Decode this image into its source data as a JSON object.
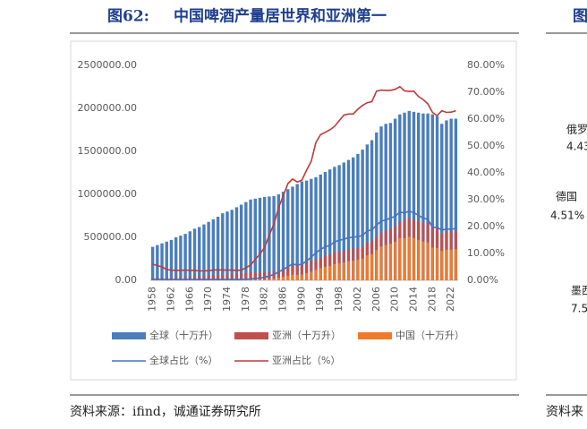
{
  "header": {
    "figure_no": "图62:",
    "title": "中国啤酒产量居世界和亚洲第一"
  },
  "chart_data": {
    "type": "bar",
    "categories": [
      "1958",
      null,
      null,
      null,
      "1962",
      null,
      null,
      null,
      "1966",
      null,
      null,
      null,
      "1970",
      null,
      null,
      null,
      "1974",
      null,
      null,
      null,
      "1978",
      null,
      null,
      null,
      "1982",
      null,
      null,
      null,
      "1986",
      null,
      null,
      null,
      "1990",
      null,
      null,
      null,
      "1994",
      null,
      null,
      null,
      "1998",
      null,
      null,
      null,
      "2002",
      null,
      null,
      null,
      "2006",
      null,
      null,
      null,
      "2010",
      null,
      null,
      null,
      "2014",
      null,
      null,
      null,
      "2018",
      null,
      null,
      null,
      "2022",
      null
    ],
    "series": [
      {
        "name": "全球（十万升）",
        "type": "bar",
        "color": "#4a7ebb",
        "values": [
          390000,
          410000,
          430000,
          450000,
          470000,
          500000,
          520000,
          540000,
          570000,
          600000,
          620000,
          650000,
          680000,
          710000,
          740000,
          780000,
          800000,
          820000,
          850000,
          880000,
          910000,
          940000,
          950000,
          960000,
          970000,
          975000,
          980000,
          1000000,
          1030000,
          1060000,
          1090000,
          1120000,
          1150000,
          1160000,
          1180000,
          1200000,
          1230000,
          1260000,
          1290000,
          1320000,
          1340000,
          1370000,
          1400000,
          1430000,
          1470000,
          1520000,
          1580000,
          1630000,
          1720000,
          1790000,
          1820000,
          1830000,
          1880000,
          1930000,
          1950000,
          1970000,
          1960000,
          1950000,
          1940000,
          1940000,
          1930000,
          1910000,
          1820000,
          1860000,
          1880000,
          1880000
        ]
      },
      {
        "name": "亚洲（十万升）",
        "type": "bar",
        "color": "#c0504d",
        "values": [
          25000,
          26000,
          28000,
          30000,
          32000,
          35000,
          38000,
          40000,
          43000,
          46000,
          48000,
          51000,
          55000,
          58000,
          62000,
          65000,
          68000,
          72000,
          76000,
          80000,
          85000,
          88000,
          90000,
          92000,
          90000,
          95000,
          105000,
          115000,
          130000,
          150000,
          175000,
          175000,
          185000,
          205000,
          230000,
          240000,
          260000,
          285000,
          300000,
          330000,
          335000,
          340000,
          360000,
          370000,
          375000,
          390000,
          440000,
          460000,
          500000,
          555000,
          580000,
          600000,
          630000,
          680000,
          695000,
          720000,
          700000,
          690000,
          670000,
          670000,
          610000,
          615000,
          540000,
          570000,
          570000,
          575000
        ]
      },
      {
        "name": "中国（十万升）",
        "type": "bar",
        "color": "#f07a2a",
        "values": [
          1500,
          1500,
          1400,
          1200,
          1200,
          1300,
          1400,
          1500,
          1600,
          1700,
          1700,
          1800,
          2000,
          2200,
          2400,
          2500,
          2600,
          2700,
          2800,
          3000,
          4000,
          5000,
          7000,
          9000,
          11000,
          16000,
          22000,
          31000,
          41000,
          54000,
          66000,
          64000,
          69000,
          84000,
          102000,
          123000,
          141000,
          157000,
          168000,
          189000,
          199000,
          209000,
          223000,
          229000,
          239000,
          254000,
          291000,
          306000,
          352000,
          393000,
          410000,
          424000,
          448000,
          490000,
          490000,
          506000,
          493000,
          472000,
          451000,
          440000,
          381000,
          377000,
          341000,
          356000,
          357000,
          363000
        ]
      },
      {
        "name": "全球占比（%）",
        "type": "line",
        "axis": "y2",
        "color": "#4472c4",
        "values": [
          0.4,
          0.4,
          0.3,
          0.3,
          0.3,
          0.3,
          0.3,
          0.3,
          0.3,
          0.3,
          0.3,
          0.3,
          0.3,
          0.3,
          0.3,
          0.3,
          0.3,
          0.3,
          0.3,
          0.3,
          0.4,
          0.5,
          0.7,
          0.9,
          1.1,
          1.6,
          2.2,
          3.1,
          4.0,
          5.1,
          6.1,
          5.7,
          6.0,
          7.2,
          8.6,
          10.3,
          11.5,
          12.5,
          13.0,
          14.3,
          14.9,
          15.3,
          15.9,
          16.0,
          16.3,
          16.7,
          18.4,
          18.8,
          20.5,
          22.0,
          22.5,
          23.2,
          23.8,
          25.4,
          25.1,
          25.7,
          25.2,
          24.2,
          23.2,
          22.7,
          19.7,
          19.7,
          18.7,
          19.1,
          19.0,
          19.3
        ]
      },
      {
        "name": "亚洲占比（%）",
        "type": "line",
        "axis": "y2",
        "color": "#c0393b",
        "values": [
          6.0,
          5.5,
          5.0,
          4.0,
          3.8,
          3.7,
          3.7,
          3.8,
          3.7,
          3.7,
          3.5,
          3.5,
          3.6,
          3.8,
          3.9,
          3.8,
          3.8,
          3.8,
          3.7,
          3.8,
          4.7,
          5.7,
          7.8,
          9.8,
          12.2,
          16.8,
          21.0,
          27.0,
          31.5,
          36.0,
          37.7,
          36.6,
          37.3,
          41.0,
          44.3,
          51.3,
          54.2,
          55.1,
          56.0,
          57.3,
          59.4,
          61.5,
          61.9,
          61.9,
          63.7,
          65.1,
          66.1,
          66.5,
          70.4,
          70.8,
          70.7,
          70.7,
          71.1,
          72.1,
          70.5,
          70.3,
          70.4,
          68.4,
          67.3,
          65.7,
          62.5,
          61.3,
          63.1,
          62.5,
          62.6,
          63.1
        ]
      }
    ],
    "ylim": [
      0,
      2500000
    ],
    "yticks": [
      {
        "value": 0,
        "label": "0.00"
      },
      {
        "value": 500000,
        "label": "500000.00"
      },
      {
        "value": 1000000,
        "label": "1000000.00"
      },
      {
        "value": 1500000,
        "label": "1500000.00"
      },
      {
        "value": 2000000,
        "label": "2000000.00"
      },
      {
        "value": 2500000,
        "label": "2500000.00"
      }
    ],
    "y2lim": [
      0,
      80
    ],
    "y2ticks": [
      {
        "value": 0,
        "label": "0.00%"
      },
      {
        "value": 10,
        "label": "10.00%"
      },
      {
        "value": 20,
        "label": "20.00%"
      },
      {
        "value": 30,
        "label": "30.00%"
      },
      {
        "value": 40,
        "label": "40.00%"
      },
      {
        "value": 50,
        "label": "50.00%"
      },
      {
        "value": 60,
        "label": "60.00%"
      },
      {
        "value": 70,
        "label": "70.00%"
      },
      {
        "value": 80,
        "label": "80.00%"
      }
    ],
    "grid": false,
    "legend": "bottom"
  },
  "source": "资料来源：ifind，诚通证券研究所",
  "side_panel": {
    "title": "图",
    "labels": [
      "俄罗",
      "4.43",
      "德国",
      "4.51%",
      "墨西",
      "7.5"
    ],
    "source": "资料来"
  }
}
